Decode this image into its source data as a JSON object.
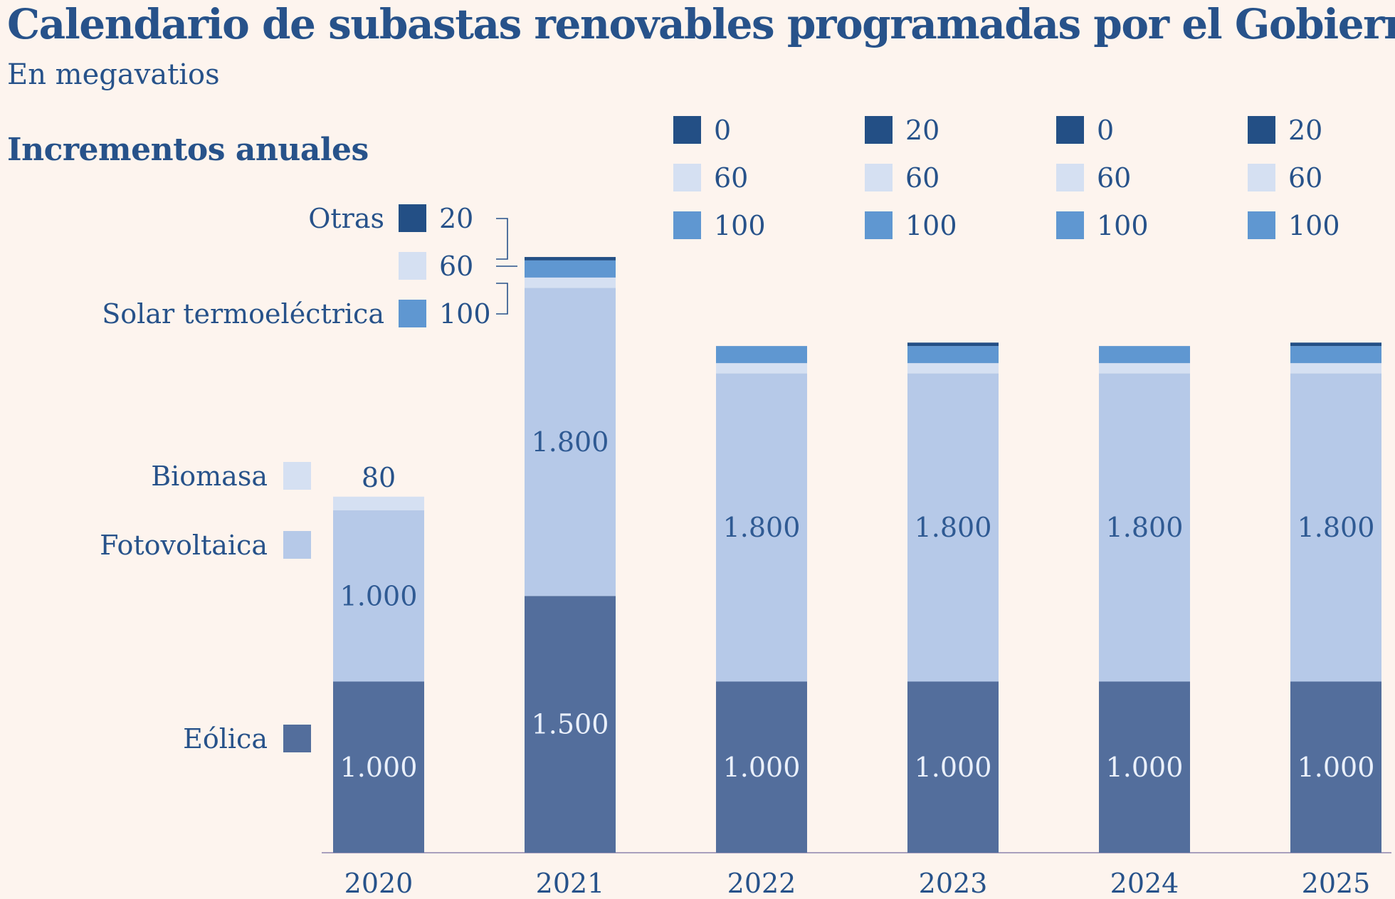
{
  "header": {
    "title": "Calendario de subastas renovables programadas por el Gobierno",
    "subtitle": "En megavatios",
    "section": "Incrementos anuales"
  },
  "colors": {
    "background": "#fdf4ee",
    "text": "#27528a",
    "eolica": "#536e9c",
    "fotovoltaica": "#b6c9e8",
    "biomasa": "#d5e0f2",
    "solar_termoelectrica": "#5f97d1",
    "otras": "#234f85",
    "axis": "#a9a0bd"
  },
  "chart_data": {
    "type": "bar",
    "stacked": true,
    "title": "Calendario de subastas renovables programadas por el Gobierno",
    "subtitle": "En megavatios",
    "categories": [
      "2020",
      "2021",
      "2022",
      "2023",
      "2024",
      "2025"
    ],
    "series": [
      {
        "name": "Eólica",
        "key": "eolica",
        "values": [
          1000,
          1500,
          1000,
          1000,
          1000,
          1000
        ],
        "labels": [
          "1.000",
          "1.500",
          "1.000",
          "1.000",
          "1.000",
          "1.000"
        ]
      },
      {
        "name": "Fotovoltaica",
        "key": "fotovoltaica",
        "values": [
          1000,
          1800,
          1800,
          1800,
          1800,
          1800
        ],
        "labels": [
          "1.000",
          "1.800",
          "1.800",
          "1.800",
          "1.800",
          "1.800"
        ]
      },
      {
        "name": "Biomasa",
        "key": "biomasa",
        "values": [
          80,
          60,
          60,
          60,
          60,
          60
        ],
        "labels": [
          "80",
          "60",
          "60",
          "60",
          "60",
          "60"
        ]
      },
      {
        "name": "Solar termoeléctrica",
        "key": "solar_termoelectrica",
        "values": [
          0,
          100,
          100,
          100,
          100,
          100
        ],
        "labels": [
          "",
          "100",
          "100",
          "100",
          "100",
          "100"
        ]
      },
      {
        "name": "Otras",
        "key": "otras",
        "values": [
          0,
          20,
          0,
          20,
          0,
          20
        ],
        "labels": [
          "",
          "20",
          "0",
          "20",
          "0",
          "20"
        ]
      }
    ],
    "ylim": [
      0,
      3500
    ],
    "grid": false,
    "legend": "left, beside bars"
  }
}
